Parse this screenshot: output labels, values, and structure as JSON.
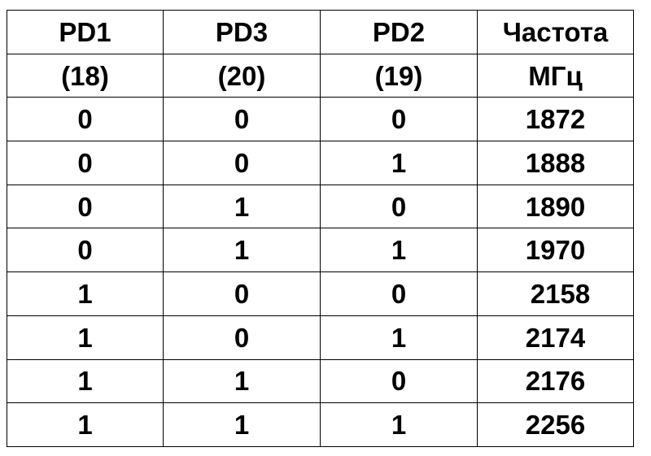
{
  "header": {
    "row1": [
      "PD1",
      "PD3",
      "PD2",
      "Частота"
    ],
    "row2": [
      "(18)",
      "(20)",
      "(19)",
      "МГц"
    ]
  },
  "rows": [
    [
      "0",
      "0",
      "0",
      "1872"
    ],
    [
      "0",
      "0",
      "1",
      "1888"
    ],
    [
      "0",
      "1",
      "0",
      "1890"
    ],
    [
      "0",
      "1",
      "1",
      "1970"
    ],
    [
      "1",
      "0",
      "0",
      "2158"
    ],
    [
      "1",
      "0",
      "1",
      "2174"
    ],
    [
      "1",
      "1",
      "0",
      "2176"
    ],
    [
      "1",
      "1",
      "1",
      "2256"
    ]
  ]
}
